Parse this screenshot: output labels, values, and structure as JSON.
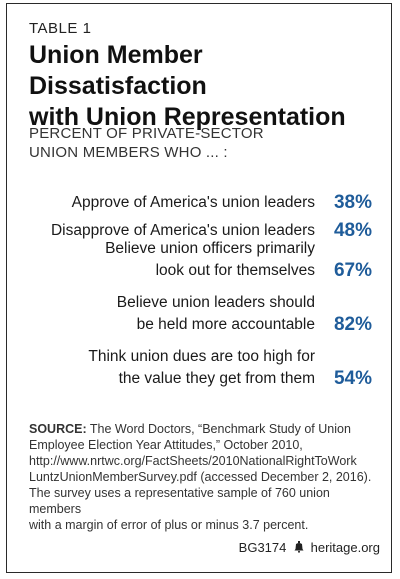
{
  "table_label": "TABLE 1",
  "title_line1": "Union Member Dissatisfaction",
  "title_line2": "with Union Representation",
  "subtitle_line1": "PERCENT OF PRIVATE-SECTOR",
  "subtitle_line2": "UNION MEMBERS WHO ... :",
  "rows": [
    {
      "line1": "Approve of America's union leaders",
      "line2": "",
      "value": "38%"
    },
    {
      "line1": "Disapprove of America's union leaders",
      "line2": "",
      "value": "48%"
    },
    {
      "line1": "Believe union officers primarily",
      "line2": "look out for themselves",
      "value": "67%"
    },
    {
      "line1": "Believe union leaders should",
      "line2": "be held more accountable",
      "value": "82%"
    },
    {
      "line1": "Think union dues are too high for",
      "line2": "the value they get from them",
      "value": "54%"
    }
  ],
  "source": {
    "prefix": "SOURCE:",
    "text_line1": " The Word Doctors, “Benchmark Study of Union",
    "text_line2": "Employee Election Year Attitudes,” October 2010,",
    "url_line1": "http://www.nrtwc.org/FactSheets/2010NationalRightToWork",
    "url_line2": "LuntzUnionMemberSurvey.pdf (accessed December 2, 2016).",
    "note_line1": "The survey uses a representative sample of 760 union members",
    "note_line2": "with a margin of error of plus or minus 3.7 percent."
  },
  "footer": {
    "code": "BG3174",
    "icon": "liberty-bell-icon",
    "site": "heritage.org"
  },
  "colors": {
    "value_blue": "#1f5c9a",
    "border": "#2a2a2a"
  }
}
